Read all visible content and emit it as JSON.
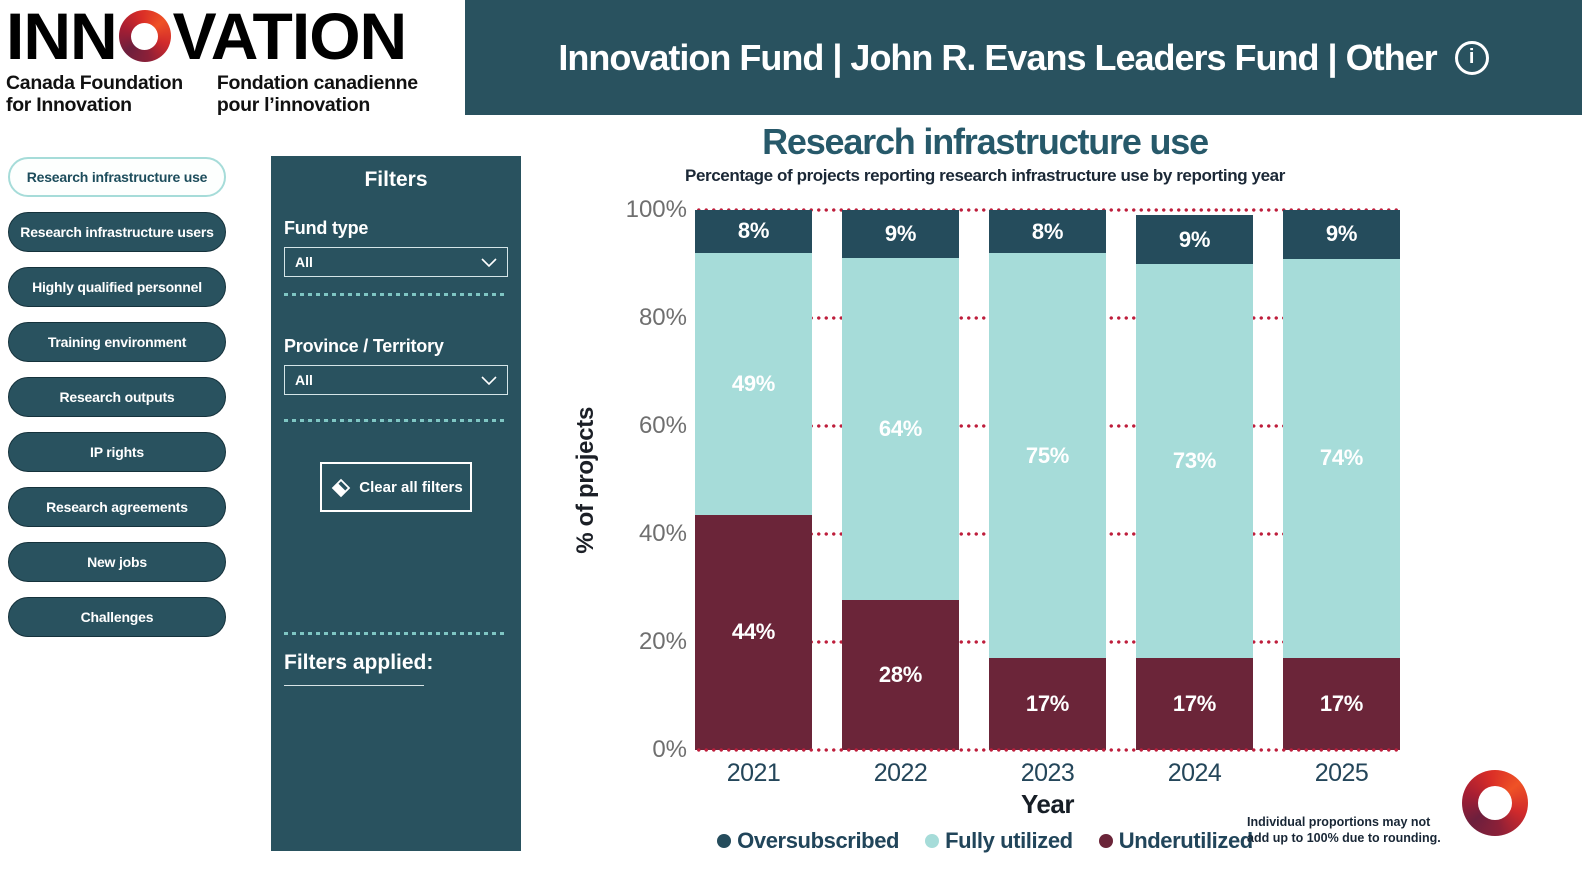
{
  "logo": {
    "word_part1": "INN",
    "word_part2": "VATION",
    "tagline_en_line1": "Canada Foundation",
    "tagline_en_line2": "for Innovation",
    "tagline_fr_line1": "Fondation canadienne",
    "tagline_fr_line2": "pour l’innovation"
  },
  "header": {
    "title": "Innovation Fund | John R. Evans Leaders Fund | Other",
    "info_icon_glyph": "i"
  },
  "sidebar": {
    "items": [
      {
        "label": "Research infrastructure use",
        "active": true
      },
      {
        "label": "Research infrastructure users",
        "active": false
      },
      {
        "label": "Highly qualified personnel",
        "active": false
      },
      {
        "label": "Training environment",
        "active": false
      },
      {
        "label": "Research outputs",
        "active": false
      },
      {
        "label": "IP rights",
        "active": false
      },
      {
        "label": "Research agreements",
        "active": false
      },
      {
        "label": "New jobs",
        "active": false
      },
      {
        "label": "Challenges",
        "active": false
      }
    ]
  },
  "filters": {
    "title": "Filters",
    "fund_type": {
      "label": "Fund type",
      "value": "All"
    },
    "province": {
      "label": "Province / Territory",
      "value": "All"
    },
    "clear_button_label": "Clear all filters",
    "applied_label": "Filters applied:"
  },
  "chart_data": {
    "type": "bar",
    "stacked": true,
    "title": "Research infrastructure use",
    "subtitle": "Percentage of projects reporting research infrastructure use by reporting year",
    "categories": [
      "2021",
      "2022",
      "2023",
      "2024",
      "2025"
    ],
    "series": [
      {
        "name": "Oversubscribed",
        "color": "#254C5C",
        "values": [
          8,
          9,
          8,
          9,
          9
        ]
      },
      {
        "name": "Fully utilized",
        "color": "#A6DCD9",
        "values": [
          49,
          64,
          75,
          73,
          74
        ]
      },
      {
        "name": "Underutilized",
        "color": "#6B2539",
        "values": [
          44,
          28,
          17,
          17,
          17
        ]
      }
    ],
    "xlabel": "Year",
    "ylabel": "% of projects",
    "ylim": [
      0,
      100
    ],
    "yticks": [
      "0%",
      "20%",
      "40%",
      "60%",
      "80%",
      "100%"
    ],
    "grid": true,
    "gridline_color": "#BE1E3C",
    "legend_position": "bottom",
    "value_label_suffix": "%",
    "footnote": "Individual proportions may not add up to 100% due to rounding."
  },
  "colors": {
    "teal_dark": "#29525F",
    "bar_dark_teal": "#254C5C",
    "bar_light_teal": "#A6DCD9",
    "bar_maroon": "#6B2539",
    "gridline_red": "#BE1E3C",
    "active_pill_border": "#A6DCD9"
  }
}
